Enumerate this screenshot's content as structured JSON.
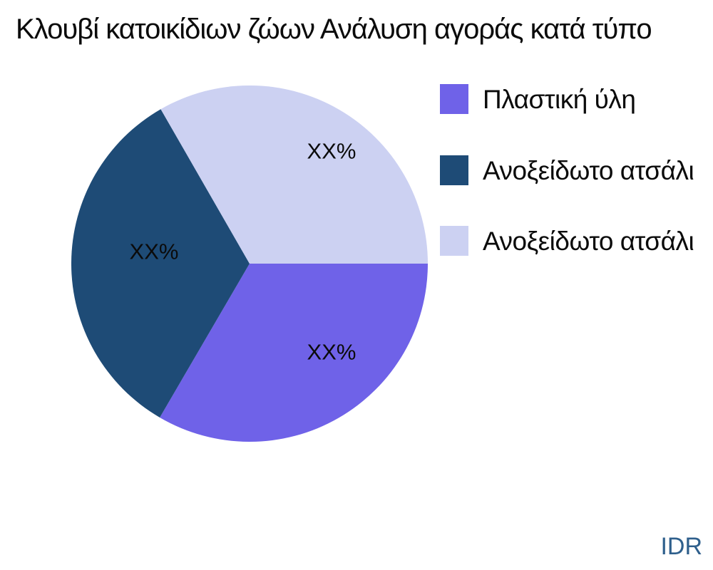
{
  "chart_data": {
    "type": "pie",
    "title": "Κλουβί κατοικίδιων ζώων Ανάλυση αγοράς κατά τύπο",
    "slices": [
      {
        "label": "Πλαστική ύλη",
        "value_label": "XX%",
        "fraction": 33.4,
        "color": "#6F62E8"
      },
      {
        "label": "Ανοξείδωτο ατσάλι",
        "value_label": "XX%",
        "fraction": 33.3,
        "color": "#1E4B76"
      },
      {
        "label": "Ανοξείδωτο ατσάλι",
        "value_label": "XX%",
        "fraction": 33.3,
        "color": "#CCD1F2"
      }
    ],
    "start_angle_deg": 0,
    "direction": "clockwise",
    "values_masked": true,
    "legend_position": "right",
    "background": "#FFFFFF",
    "text_color": "#0B0B0B"
  },
  "watermark": {
    "text": "IDR",
    "color": "#2E5F8C"
  }
}
